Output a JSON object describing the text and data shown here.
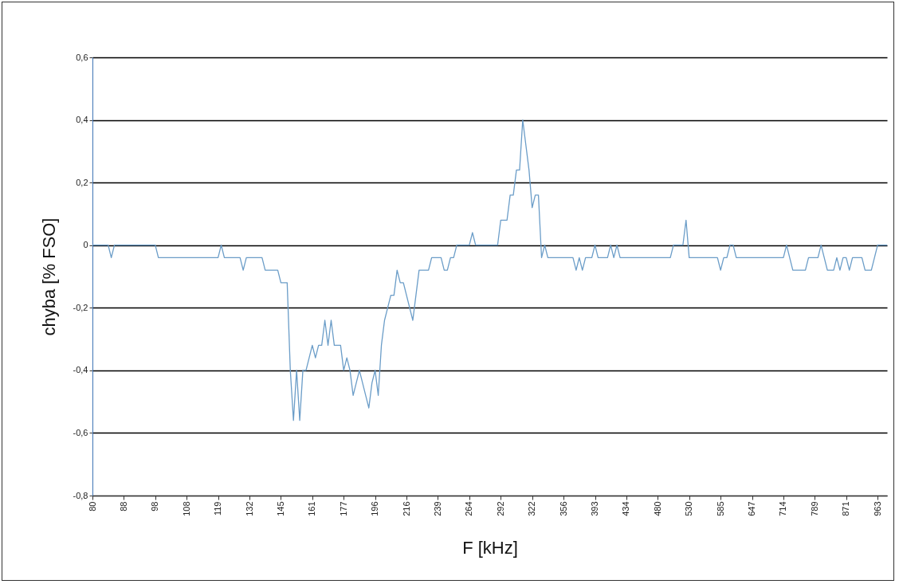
{
  "chart_data": {
    "type": "line",
    "xlabel": "F [kHz]",
    "ylabel": "chyba [% FSO]",
    "categories": [
      "80",
      null,
      null,
      null,
      null,
      null,
      null,
      null,
      null,
      null,
      "88",
      null,
      null,
      null,
      null,
      null,
      null,
      null,
      null,
      null,
      "98",
      null,
      null,
      null,
      null,
      null,
      null,
      null,
      null,
      null,
      "108",
      null,
      null,
      null,
      null,
      null,
      null,
      null,
      null,
      null,
      "119",
      null,
      null,
      null,
      null,
      null,
      null,
      null,
      null,
      null,
      "132",
      null,
      null,
      null,
      null,
      null,
      null,
      null,
      null,
      null,
      "145",
      null,
      null,
      null,
      null,
      null,
      null,
      null,
      null,
      null,
      "161",
      null,
      null,
      null,
      null,
      null,
      null,
      null,
      null,
      null,
      "177",
      null,
      null,
      null,
      null,
      null,
      null,
      null,
      null,
      null,
      "196",
      null,
      null,
      null,
      null,
      null,
      null,
      null,
      null,
      null,
      "216",
      null,
      null,
      null,
      null,
      null,
      null,
      null,
      null,
      null,
      "239",
      null,
      null,
      null,
      null,
      null,
      null,
      null,
      null,
      null,
      "264",
      null,
      null,
      null,
      null,
      null,
      null,
      null,
      null,
      null,
      "292",
      null,
      null,
      null,
      null,
      null,
      null,
      null,
      null,
      null,
      "322",
      null,
      null,
      null,
      null,
      null,
      null,
      null,
      null,
      null,
      "356",
      null,
      null,
      null,
      null,
      null,
      null,
      null,
      null,
      null,
      "393",
      null,
      null,
      null,
      null,
      null,
      null,
      null,
      null,
      null,
      "434",
      null,
      null,
      null,
      null,
      null,
      null,
      null,
      null,
      null,
      "480",
      null,
      null,
      null,
      null,
      null,
      null,
      null,
      null,
      null,
      "530",
      null,
      null,
      null,
      null,
      null,
      null,
      null,
      null,
      null,
      "585",
      null,
      null,
      null,
      null,
      null,
      null,
      null,
      null,
      null,
      "647",
      null,
      null,
      null,
      null,
      null,
      null,
      null,
      null,
      null,
      "714",
      null,
      null,
      null,
      null,
      null,
      null,
      null,
      null,
      null,
      "789",
      null,
      null,
      null,
      null,
      null,
      null,
      null,
      null,
      null,
      "871",
      null,
      null,
      null,
      null,
      null,
      null,
      null,
      null,
      null,
      "963",
      null,
      null,
      null
    ],
    "series": [
      {
        "color": "#6b9dc8",
        "values": [
          0,
          0,
          0,
          0,
          0,
          0,
          -0.04,
          0,
          0,
          0,
          0,
          0,
          0,
          0,
          0,
          0,
          0,
          0,
          0,
          0,
          0,
          -0.04,
          -0.04,
          -0.04,
          -0.04,
          -0.04,
          -0.04,
          -0.04,
          -0.04,
          -0.04,
          -0.04,
          -0.04,
          -0.04,
          -0.04,
          -0.04,
          -0.04,
          -0.04,
          -0.04,
          -0.04,
          -0.04,
          -0.04,
          0,
          -0.04,
          -0.04,
          -0.04,
          -0.04,
          -0.04,
          -0.04,
          -0.08,
          -0.04,
          -0.04,
          -0.04,
          -0.04,
          -0.04,
          -0.04,
          -0.08,
          -0.08,
          -0.08,
          -0.08,
          -0.08,
          -0.12,
          -0.12,
          -0.12,
          -0.4,
          -0.56,
          -0.4,
          -0.56,
          -0.4,
          -0.4,
          -0.36,
          -0.32,
          -0.36,
          -0.32,
          -0.32,
          -0.24,
          -0.32,
          -0.24,
          -0.32,
          -0.32,
          -0.32,
          -0.4,
          -0.36,
          -0.4,
          -0.48,
          -0.44,
          -0.4,
          -0.44,
          -0.48,
          -0.52,
          -0.44,
          -0.4,
          -0.48,
          -0.32,
          -0.24,
          -0.2,
          -0.16,
          -0.16,
          -0.08,
          -0.12,
          -0.12,
          -0.16,
          -0.2,
          -0.24,
          -0.16,
          -0.08,
          -0.08,
          -0.08,
          -0.08,
          -0.04,
          -0.04,
          -0.04,
          -0.04,
          -0.08,
          -0.08,
          -0.04,
          -0.04,
          0,
          0,
          0,
          0,
          0,
          0.04,
          0,
          0,
          0,
          0,
          0,
          0,
          0,
          0,
          0.08,
          0.08,
          0.08,
          0.16,
          0.16,
          0.24,
          0.24,
          0.4,
          0.32,
          0.24,
          0.12,
          0.16,
          0.16,
          -0.04,
          0,
          -0.04,
          -0.04,
          -0.04,
          -0.04,
          -0.04,
          -0.04,
          -0.04,
          -0.04,
          -0.04,
          -0.08,
          -0.04,
          -0.08,
          -0.04,
          -0.04,
          -0.04,
          0,
          -0.04,
          -0.04,
          -0.04,
          -0.04,
          0,
          -0.04,
          0,
          -0.04,
          -0.04,
          -0.04,
          -0.04,
          -0.04,
          -0.04,
          -0.04,
          -0.04,
          -0.04,
          -0.04,
          -0.04,
          -0.04,
          -0.04,
          -0.04,
          -0.04,
          -0.04,
          -0.04,
          0,
          0,
          0,
          0,
          0.08,
          -0.04,
          -0.04,
          -0.04,
          -0.04,
          -0.04,
          -0.04,
          -0.04,
          -0.04,
          -0.04,
          -0.04,
          -0.08,
          -0.04,
          -0.04,
          0,
          0,
          -0.04,
          -0.04,
          -0.04,
          -0.04,
          -0.04,
          -0.04,
          -0.04,
          -0.04,
          -0.04,
          -0.04,
          -0.04,
          -0.04,
          -0.04,
          -0.04,
          -0.04,
          -0.04,
          0,
          -0.04,
          -0.08,
          -0.08,
          -0.08,
          -0.08,
          -0.08,
          -0.04,
          -0.04,
          -0.04,
          -0.04,
          0,
          -0.04,
          -0.08,
          -0.08,
          -0.08,
          -0.04,
          -0.08,
          -0.04,
          -0.04,
          -0.08,
          -0.04,
          -0.04,
          -0.04,
          -0.04,
          -0.08,
          -0.08,
          -0.08,
          -0.04,
          0,
          0,
          0,
          0
        ]
      }
    ],
    "ylim": [
      -0.8,
      0.6
    ],
    "yticks": [
      {
        "value": -0.8,
        "label": "-0,8"
      },
      {
        "value": -0.6,
        "label": "-0,6"
      },
      {
        "value": -0.4,
        "label": "-0,4"
      },
      {
        "value": -0.2,
        "label": "-0,2"
      },
      0,
      {
        "value": 0.2,
        "label": "0,2"
      },
      {
        "value": 0.4,
        "label": "0,4"
      },
      {
        "value": 0.6,
        "label": "0,6"
      }
    ],
    "grid": "y"
  }
}
